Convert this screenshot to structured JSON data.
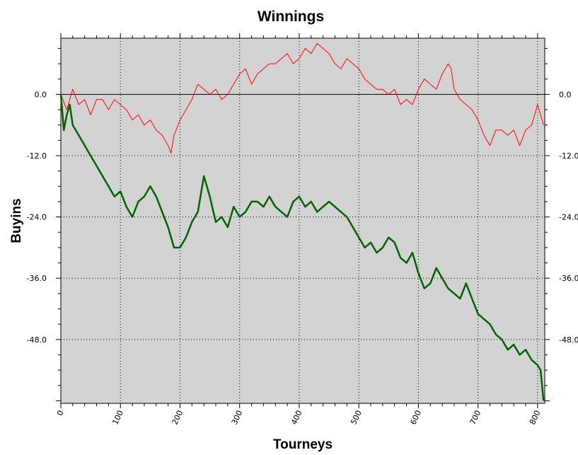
{
  "chart_data": {
    "type": "line",
    "title": "Winnings",
    "xlabel": "Tourneys",
    "ylabel": "Buyins",
    "xlim": [
      0,
      812
    ],
    "ylim": [
      -60.5,
      11
    ],
    "x_ticks": [
      "0",
      "100",
      "200",
      "300",
      "400",
      "500",
      "600",
      "700",
      "800"
    ],
    "y_ticks": [
      "0.0",
      "-12.0",
      "-24.0",
      "-36.0",
      "-48.0"
    ],
    "grid": true,
    "legend": "none",
    "colors": {
      "plot_bg": "#d3d3d3",
      "red_series": "#ff0000",
      "green_series": "#006400",
      "zero_line": "#000000"
    },
    "series": [
      {
        "color": "#ff0000",
        "x": [
          0,
          10,
          20,
          30,
          40,
          50,
          60,
          70,
          80,
          90,
          100,
          110,
          120,
          130,
          140,
          150,
          160,
          170,
          180,
          185,
          190,
          200,
          210,
          220,
          230,
          240,
          250,
          260,
          270,
          280,
          290,
          300,
          310,
          320,
          330,
          340,
          350,
          360,
          370,
          380,
          390,
          400,
          410,
          420,
          430,
          440,
          450,
          460,
          470,
          480,
          490,
          500,
          510,
          520,
          530,
          540,
          550,
          560,
          570,
          580,
          590,
          600,
          610,
          620,
          630,
          640,
          650,
          655,
          660,
          670,
          680,
          690,
          700,
          710,
          720,
          730,
          740,
          750,
          760,
          770,
          780,
          790,
          800,
          810
        ],
        "y": [
          0,
          -3,
          1,
          -2,
          -1,
          -4,
          -1,
          -1,
          -3,
          -1,
          -2,
          -3,
          -5,
          -4,
          -6,
          -5,
          -7,
          -8,
          -10,
          -11.5,
          -8,
          -5,
          -3,
          -1,
          2,
          1,
          0,
          1,
          -1,
          0,
          2,
          4,
          5,
          2,
          4,
          5,
          6,
          6,
          7,
          8,
          6,
          7,
          9,
          8,
          10,
          9,
          8,
          6,
          5,
          7,
          6,
          5,
          3,
          2,
          1,
          1,
          0,
          1,
          -2,
          -1,
          -2,
          1,
          3,
          2,
          1,
          4,
          6,
          5,
          1,
          -1,
          -2,
          -3,
          -5,
          -8,
          -10,
          -7,
          -7,
          -8,
          -7,
          -10,
          -7,
          -6,
          -2,
          -6
        ]
      },
      {
        "color": "#006400",
        "x": [
          0,
          5,
          10,
          15,
          20,
          30,
          40,
          50,
          60,
          70,
          80,
          90,
          100,
          110,
          120,
          130,
          140,
          150,
          160,
          170,
          180,
          190,
          200,
          210,
          220,
          230,
          240,
          250,
          260,
          270,
          280,
          290,
          300,
          310,
          320,
          330,
          340,
          350,
          360,
          370,
          380,
          390,
          400,
          410,
          420,
          430,
          440,
          450,
          460,
          470,
          480,
          490,
          500,
          510,
          520,
          530,
          540,
          550,
          560,
          570,
          580,
          590,
          600,
          610,
          620,
          630,
          640,
          650,
          660,
          670,
          680,
          690,
          700,
          710,
          720,
          730,
          740,
          750,
          760,
          770,
          780,
          790,
          800,
          805,
          810
        ],
        "y": [
          0,
          -7,
          -4,
          -2,
          -6,
          -8,
          -10,
          -12,
          -14,
          -16,
          -18,
          -20,
          -19,
          -22,
          -24,
          -21,
          -20,
          -18,
          -20,
          -23,
          -26,
          -30,
          -30,
          -28,
          -25,
          -23,
          -16,
          -20,
          -25,
          -24,
          -26,
          -22,
          -24,
          -23,
          -21,
          -21,
          -22,
          -20,
          -22,
          -23,
          -24,
          -21,
          -20,
          -22,
          -21,
          -23,
          -22,
          -21,
          -22,
          -23,
          -24,
          -26,
          -28,
          -30,
          -29,
          -31,
          -30,
          -28,
          -29,
          -32,
          -33,
          -31,
          -35,
          -38,
          -37,
          -34,
          -36,
          -38,
          -39,
          -40,
          -37,
          -40,
          -43,
          -44,
          -45,
          -47,
          -48,
          -50,
          -49,
          -51,
          -50,
          -52,
          -53,
          -54,
          -60
        ]
      }
    ]
  }
}
